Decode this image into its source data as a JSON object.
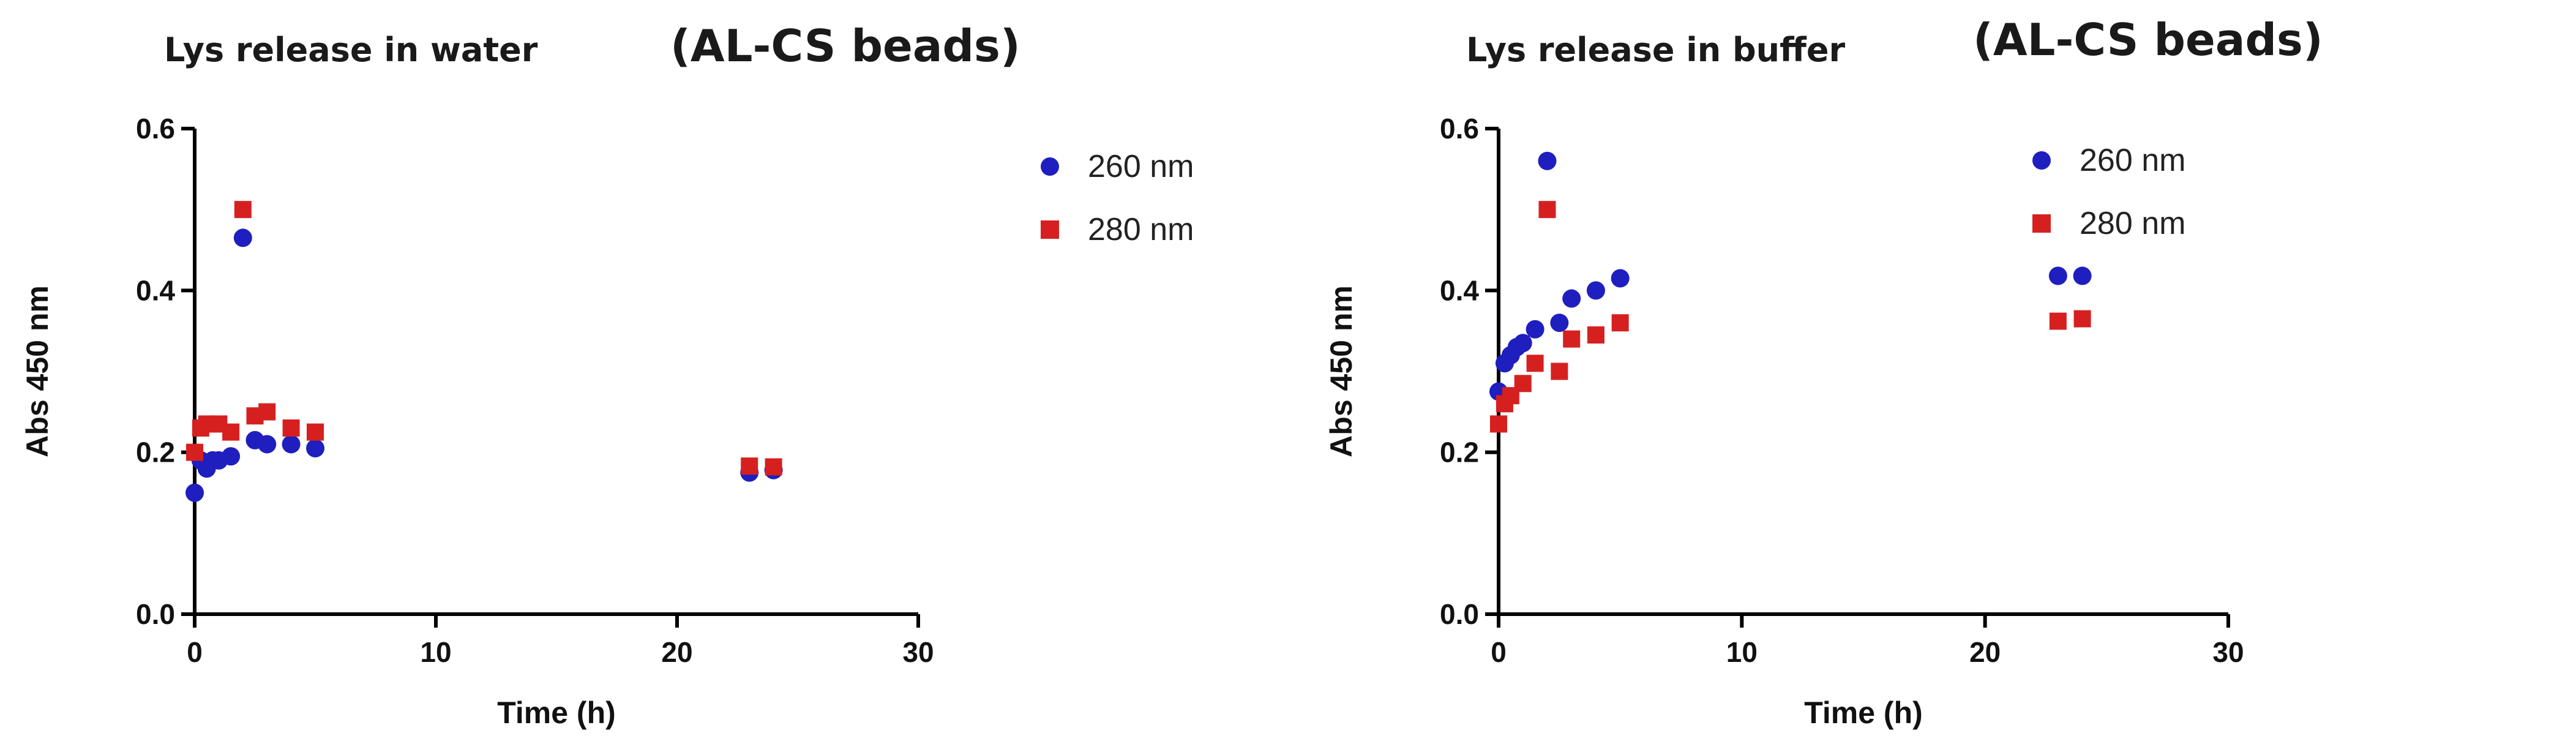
{
  "chart_data": [
    {
      "type": "scatter",
      "title": "Lys release in water",
      "subtitle": "(AL-CS beads)",
      "xlabel": "Time (h)",
      "ylabel": "Abs 450 nm",
      "xlim": [
        0,
        30
      ],
      "ylim": [
        0,
        0.6
      ],
      "xticks": [
        "0",
        "10",
        "20",
        "30"
      ],
      "yticks": [
        "0.0",
        "0.2",
        "0.4",
        "0.6"
      ],
      "grid": false,
      "legend_position": "top-right",
      "series": [
        {
          "name": "260 nm",
          "marker": "circle",
          "color": "#1f1fbf",
          "points": [
            [
              0,
              0.15
            ],
            [
              0.25,
              0.19
            ],
            [
              0.5,
              0.18
            ],
            [
              0.75,
              0.19
            ],
            [
              1,
              0.19
            ],
            [
              1.5,
              0.195
            ],
            [
              2,
              0.465
            ],
            [
              2.5,
              0.215
            ],
            [
              3,
              0.21
            ],
            [
              4,
              0.21
            ],
            [
              5,
              0.205
            ],
            [
              23,
              0.175
            ],
            [
              24,
              0.178
            ]
          ]
        },
        {
          "name": "280 nm",
          "marker": "square",
          "color": "#d62020",
          "points": [
            [
              0,
              0.2
            ],
            [
              0.25,
              0.23
            ],
            [
              0.5,
              0.235
            ],
            [
              1,
              0.235
            ],
            [
              1.5,
              0.225
            ],
            [
              2,
              0.5
            ],
            [
              2.5,
              0.245
            ],
            [
              3,
              0.25
            ],
            [
              4,
              0.23
            ],
            [
              5,
              0.225
            ],
            [
              23,
              0.183
            ],
            [
              24,
              0.182
            ]
          ]
        }
      ]
    },
    {
      "type": "scatter",
      "title": "Lys release in buffer",
      "subtitle": "(AL-CS beads)",
      "xlabel": "Time (h)",
      "ylabel": "Abs 450 nm",
      "xlim": [
        0,
        30
      ],
      "ylim": [
        0,
        0.6
      ],
      "xticks": [
        "0",
        "10",
        "20",
        "30"
      ],
      "yticks": [
        "0.0",
        "0.2",
        "0.4",
        "0.6"
      ],
      "grid": false,
      "legend_position": "top-right",
      "series": [
        {
          "name": "260 nm",
          "marker": "circle",
          "color": "#1f1fbf",
          "points": [
            [
              0,
              0.275
            ],
            [
              0.25,
              0.31
            ],
            [
              0.5,
              0.32
            ],
            [
              0.75,
              0.33
            ],
            [
              1,
              0.335
            ],
            [
              1.5,
              0.352
            ],
            [
              2,
              0.56
            ],
            [
              2.5,
              0.36
            ],
            [
              3,
              0.39
            ],
            [
              4,
              0.4
            ],
            [
              5,
              0.415
            ],
            [
              23,
              0.418
            ],
            [
              24,
              0.418
            ]
          ]
        },
        {
          "name": "280 nm",
          "marker": "square",
          "color": "#d62020",
          "points": [
            [
              0,
              0.235
            ],
            [
              0.25,
              0.26
            ],
            [
              0.5,
              0.27
            ],
            [
              1,
              0.285
            ],
            [
              1.5,
              0.31
            ],
            [
              2,
              0.5
            ],
            [
              2.5,
              0.3
            ],
            [
              3,
              0.34
            ],
            [
              4,
              0.345
            ],
            [
              5,
              0.36
            ],
            [
              23,
              0.362
            ],
            [
              24,
              0.365
            ]
          ]
        }
      ]
    }
  ]
}
